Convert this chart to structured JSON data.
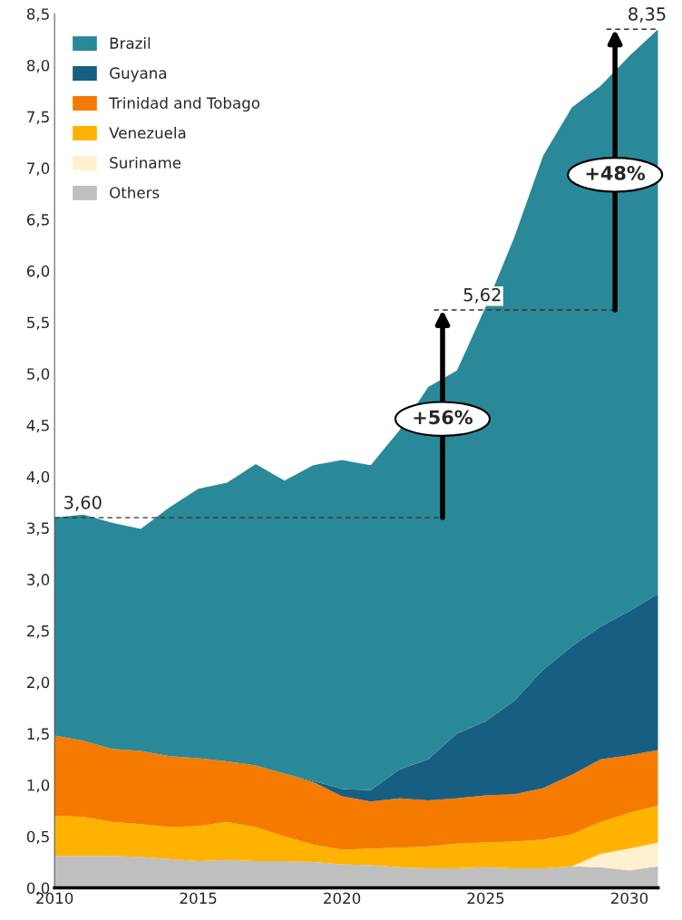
{
  "chart_data": {
    "type": "area",
    "stacked": true,
    "x": [
      2010,
      2011,
      2012,
      2013,
      2014,
      2015,
      2016,
      2017,
      2018,
      2019,
      2020,
      2021,
      2022,
      2023,
      2024,
      2025,
      2026,
      2027,
      2028,
      2029,
      2030,
      2031
    ],
    "series": [
      {
        "name": "Others",
        "color": "#bfbfbf",
        "values": [
          0.31,
          0.31,
          0.31,
          0.3,
          0.28,
          0.26,
          0.27,
          0.26,
          0.26,
          0.25,
          0.23,
          0.22,
          0.2,
          0.19,
          0.19,
          0.2,
          0.19,
          0.19,
          0.21,
          0.2,
          0.17,
          0.21
        ]
      },
      {
        "name": "Suriname",
        "color": "#fff0d0",
        "values": [
          0,
          0,
          0,
          0,
          0,
          0,
          0,
          0,
          0,
          0,
          0,
          0,
          0,
          0,
          0,
          0,
          0,
          0,
          0,
          0.13,
          0.21,
          0.23
        ]
      },
      {
        "name": "Venezuela",
        "color": "#ffb300",
        "values": [
          0.39,
          0.38,
          0.33,
          0.32,
          0.31,
          0.34,
          0.37,
          0.33,
          0.24,
          0.17,
          0.14,
          0.16,
          0.19,
          0.21,
          0.24,
          0.24,
          0.26,
          0.28,
          0.31,
          0.31,
          0.35,
          0.36
        ]
      },
      {
        "name": "Trinidad and Tobago",
        "color": "#f57a00",
        "values": [
          0.78,
          0.74,
          0.71,
          0.71,
          0.69,
          0.66,
          0.59,
          0.6,
          0.61,
          0.61,
          0.52,
          0.46,
          0.48,
          0.45,
          0.44,
          0.46,
          0.46,
          0.5,
          0.58,
          0.61,
          0.56,
          0.54
        ]
      },
      {
        "name": "Guyana",
        "color": "#175f82",
        "values": [
          0,
          0,
          0,
          0,
          0,
          0,
          0,
          0,
          0,
          0.01,
          0.07,
          0.11,
          0.28,
          0.4,
          0.63,
          0.72,
          0.91,
          1.15,
          1.25,
          1.29,
          1.4,
          1.52
        ]
      },
      {
        "name": "Brazil",
        "color": "#2a8998",
        "values": [
          2.12,
          2.2,
          2.2,
          2.16,
          2.42,
          2.62,
          2.71,
          2.93,
          2.85,
          3.07,
          3.2,
          3.16,
          3.3,
          3.62,
          3.53,
          4.03,
          4.51,
          5.0,
          5.24,
          5.26,
          5.4,
          5.49
        ]
      },
      {
        "type": "line",
        "line_style": "dashed",
        "color": "#333333",
        "x": [
          2010,
          2023.5
        ],
        "values": [
          3.6,
          3.6
        ]
      },
      {
        "type": "line",
        "line_style": "dashed",
        "color": "#333333",
        "x": [
          2023.2,
          2029.5
        ],
        "values": [
          5.62,
          5.62
        ]
      },
      {
        "type": "line",
        "line_style": "dashed",
        "color": "#333333",
        "x": [
          2029.2,
          2031
        ],
        "values": [
          8.35,
          8.35
        ]
      }
    ],
    "xlim": [
      2010,
      2031
    ],
    "xticks": [
      2010,
      2015,
      2020,
      2025,
      2030
    ],
    "ylim": [
      0,
      8.5
    ],
    "yticks": [
      {
        "value": 0,
        "label": "0,0"
      },
      {
        "value": 0.5,
        "label": "0,5"
      },
      {
        "value": 1,
        "label": "1,0"
      },
      {
        "value": 1.5,
        "label": "1,5"
      },
      {
        "value": 2,
        "label": "2,0"
      },
      {
        "value": 2.5,
        "label": "2,5"
      },
      {
        "value": 3,
        "label": "3,0"
      },
      {
        "value": 3.5,
        "label": "3,5"
      },
      {
        "value": 4,
        "label": "4,0"
      },
      {
        "value": 4.5,
        "label": "4,5"
      },
      {
        "value": 5,
        "label": "5,0"
      },
      {
        "value": 5.5,
        "label": "5,5"
      },
      {
        "value": 6,
        "label": "6,0"
      },
      {
        "value": 6.5,
        "label": "6,5"
      },
      {
        "value": 7,
        "label": "7,0"
      },
      {
        "value": 7.5,
        "label": "7,5"
      },
      {
        "value": 8,
        "label": "8,0"
      },
      {
        "value": 8.5,
        "label": "8,5"
      }
    ],
    "legend": "top left",
    "annotations": [
      {
        "text": "3,60",
        "x": 2010,
        "y": 3.6
      },
      "+56%",
      {
        "text": "5,62",
        "x": 2023.2,
        "y": 5.62
      },
      "+48%",
      {
        "text": "8,35",
        "x": 2031,
        "y": 8.35
      }
    ]
  }
}
